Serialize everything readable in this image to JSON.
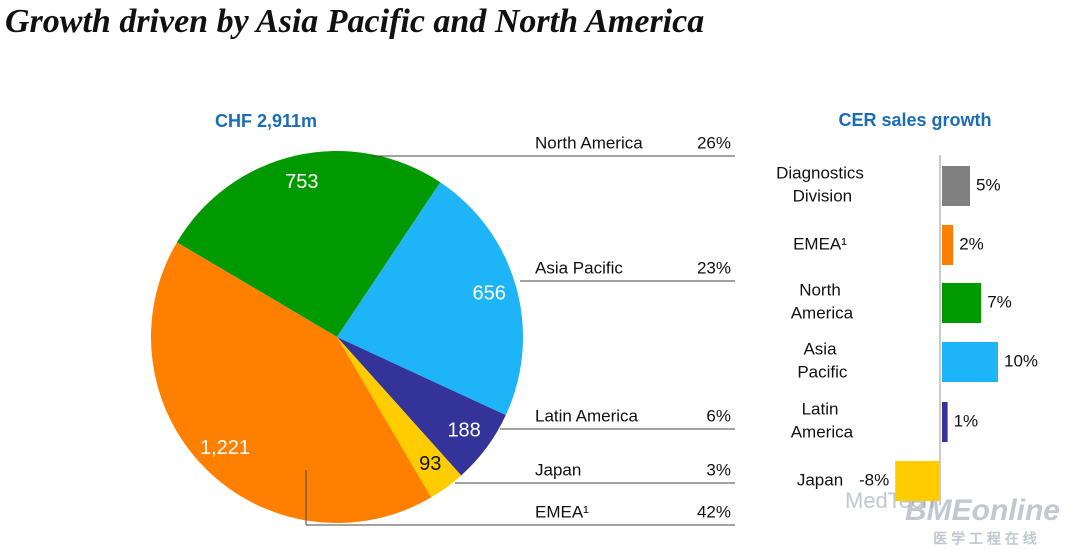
{
  "title": "Growth driven by Asia Pacific and North America",
  "chart_data": [
    {
      "type": "pie",
      "title": "CHF 2,911m",
      "categories": [
        "North America",
        "Asia Pacific",
        "Latin America",
        "Japan",
        "EMEA¹"
      ],
      "values": [
        753,
        656,
        188,
        93,
        1221
      ],
      "value_labels": [
        "753",
        "656",
        "188",
        "93",
        "1,221"
      ],
      "share_labels": [
        "26%",
        "23%",
        "6%",
        "3%",
        "42%"
      ],
      "colors": [
        "#009900",
        "#1eb4f8",
        "#333399",
        "#ffcc00",
        "#ff8000"
      ]
    },
    {
      "type": "hbar",
      "title": "CER sales growth",
      "categories": [
        "Diagnostics Division",
        "EMEA¹",
        "North America",
        "Asia Pacific",
        "Latin America",
        "Japan"
      ],
      "values": [
        5,
        2,
        7,
        10,
        1,
        -8
      ],
      "value_labels": [
        "5%",
        "2%",
        "7%",
        "10%",
        "1%",
        "-8%"
      ],
      "colors": [
        "#808080",
        "#ff8000",
        "#009900",
        "#1eb4f8",
        "#333399",
        "#ffcc00"
      ]
    }
  ],
  "watermark": [
    "MedTech",
    "BMEonline",
    "医 学 工 程 在 线"
  ]
}
